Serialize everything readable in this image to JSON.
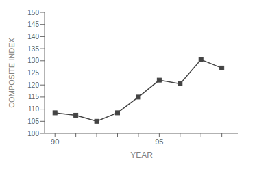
{
  "chart_data": {
    "type": "line",
    "xlabel": "YEAR",
    "ylabel": "COMPOSITE INDEX",
    "x": [
      1990,
      1991,
      1992,
      1993,
      1994,
      1995,
      1996,
      1997,
      1998
    ],
    "series": [
      {
        "name": null,
        "color": "#444444",
        "marker": "square",
        "values": [
          108.5,
          107.5,
          105.0,
          108.5,
          115.0,
          122.0,
          120.5,
          130.5,
          127.0
        ]
      }
    ],
    "xlim": [
      1989.5,
      1998.8
    ],
    "xticks": [
      {
        "value": 1990,
        "label": "90"
      },
      {
        "value": 1991,
        "label": null
      },
      {
        "value": 1992,
        "label": null
      },
      {
        "value": 1993,
        "label": null
      },
      {
        "value": 1994,
        "label": null
      },
      {
        "value": 1995,
        "label": "95"
      },
      {
        "value": 1996,
        "label": null
      },
      {
        "value": 1997,
        "label": null
      },
      {
        "value": 1998,
        "label": null
      }
    ],
    "ylim": [
      100,
      150
    ],
    "yticks": [
      100,
      105,
      110,
      115,
      120,
      125,
      130,
      135,
      140,
      145,
      150
    ],
    "grid": false
  }
}
